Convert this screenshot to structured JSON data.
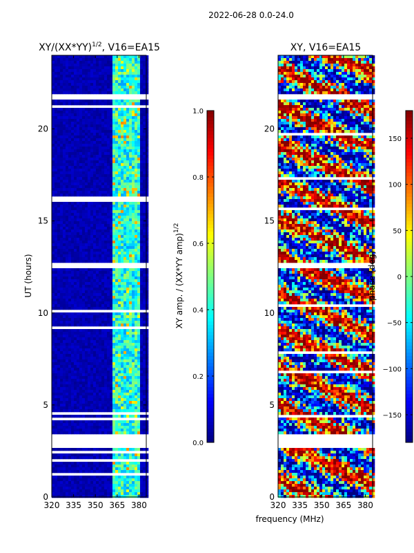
{
  "chart_data": {
    "suptitle": "2022-06-28 0.0-24.0",
    "xlabel": "frequency (MHz)",
    "ylabel": "UT (hours)",
    "panels": [
      {
        "name": "amp",
        "type": "heatmap",
        "title_main": "XY/(XX*YY)",
        "title_exp": "1/2",
        "title_tail": ", V16=EA15",
        "xlim": [
          320,
          385
        ],
        "ylim": [
          0,
          24
        ],
        "xticks": [
          "320",
          "335",
          "350",
          "365",
          "380"
        ],
        "xtick_values": [
          320,
          335,
          350,
          365,
          380
        ],
        "yticks": [
          "0",
          "5",
          "10",
          "15",
          "20"
        ],
        "ytick_values": [
          0,
          5,
          10,
          15,
          20
        ],
        "colorscale": "jet",
        "colorbar": {
          "range": [
            0,
            1
          ],
          "ticks": [
            "0.0",
            "0.2",
            "0.4",
            "0.6",
            "0.8",
            "1.0"
          ],
          "tick_values": [
            0,
            0.2,
            0.4,
            0.6,
            0.8,
            1.0
          ],
          "label_main": "XY amp. / (XX*YY amp)",
          "label_exp": "1/2"
        }
      },
      {
        "name": "phase",
        "type": "heatmap",
        "title_main": "XY, V16=EA15",
        "title_exp": "",
        "title_tail": "",
        "xlim": [
          320,
          385
        ],
        "ylim": [
          0,
          24
        ],
        "xticks": [
          "320",
          "335",
          "350",
          "365",
          "380"
        ],
        "xtick_values": [
          320,
          335,
          350,
          365,
          380
        ],
        "yticks": [
          "0",
          "5",
          "10",
          "15",
          "20"
        ],
        "ytick_values": [
          0,
          5,
          10,
          15,
          20
        ],
        "colorscale": "jet",
        "colorbar": {
          "range": [
            -180,
            180
          ],
          "ticks": [
            "−150",
            "−100",
            "−50",
            "0",
            "50",
            "100",
            "150"
          ],
          "tick_values": [
            -150,
            -100,
            -50,
            0,
            50,
            100,
            150
          ],
          "label_main": "phase (deg)",
          "label_exp": ""
        }
      }
    ],
    "flagged_ut_intervals": [
      [
        2.7,
        3.4
      ],
      [
        12.5,
        12.8
      ],
      [
        21.6,
        21.9
      ]
    ],
    "bright_channel_range_mhz": [
      362,
      380
    ]
  }
}
